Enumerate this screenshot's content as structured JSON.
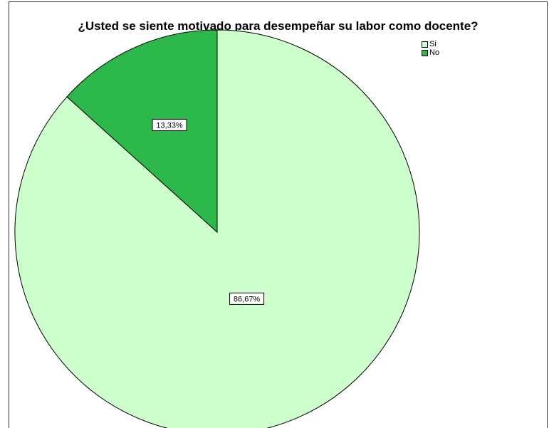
{
  "chart_data": {
    "type": "pie",
    "title": "¿Usted se siente motivado para desempeñar su labor como docente?",
    "legend_position": "top-right",
    "slices": [
      {
        "label": "Si",
        "value": 86.67,
        "display": "86,67%",
        "color": "#ccffcc"
      },
      {
        "label": "No",
        "value": 13.33,
        "display": "13,33%",
        "color": "#2db84b"
      }
    ]
  }
}
